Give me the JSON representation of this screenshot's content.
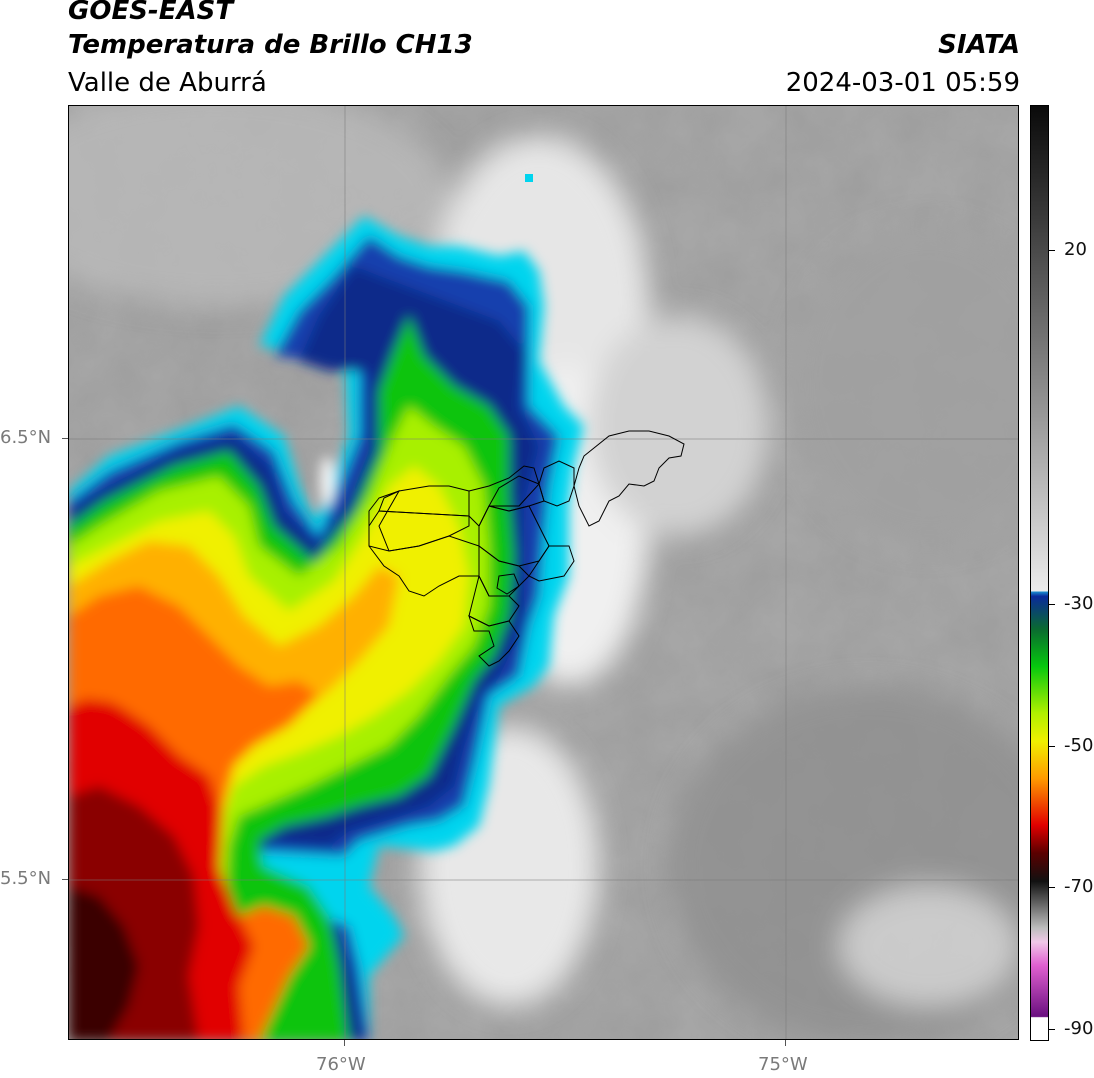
{
  "header": {
    "satellite": "GOES-EAST",
    "product": "Temperatura de Brillo CH13",
    "region": "Valle de Aburrá",
    "agency": "SIATA",
    "datetime": "2024-03-01 05:59"
  },
  "axes": {
    "lat_labels": [
      "6.5°N",
      "5.5°N"
    ],
    "lon_labels": [
      "76°W",
      "75°W"
    ]
  },
  "colorbar": {
    "ticks": [
      "20",
      "-30",
      "-50",
      "-70",
      "-90"
    ],
    "colors": {
      "warm_light": "#f2f2f2",
      "warm_dark": "#111111",
      "cyan": "#00d2ec",
      "blue": "#0a2b9a",
      "green": "#06c80e",
      "yellow": "#f0f000",
      "orange": "#ff8c00",
      "red": "#e10000",
      "dark_red": "#5a0000",
      "magenta": "#e060d0",
      "purple": "#7a1a8a"
    }
  },
  "map": {
    "cloud_palette": [
      "#00d4ee",
      "#1a8fd0",
      "#0a2b9a",
      "#06c80e",
      "#a8f000",
      "#f0f000",
      "#ffb000",
      "#ff6a00",
      "#e10000",
      "#8a0000",
      "#3a0000"
    ],
    "ground_shades": [
      "#8c8c8c",
      "#a4a4a4",
      "#bcbcbc",
      "#d6d6d6",
      "#efefef"
    ]
  }
}
